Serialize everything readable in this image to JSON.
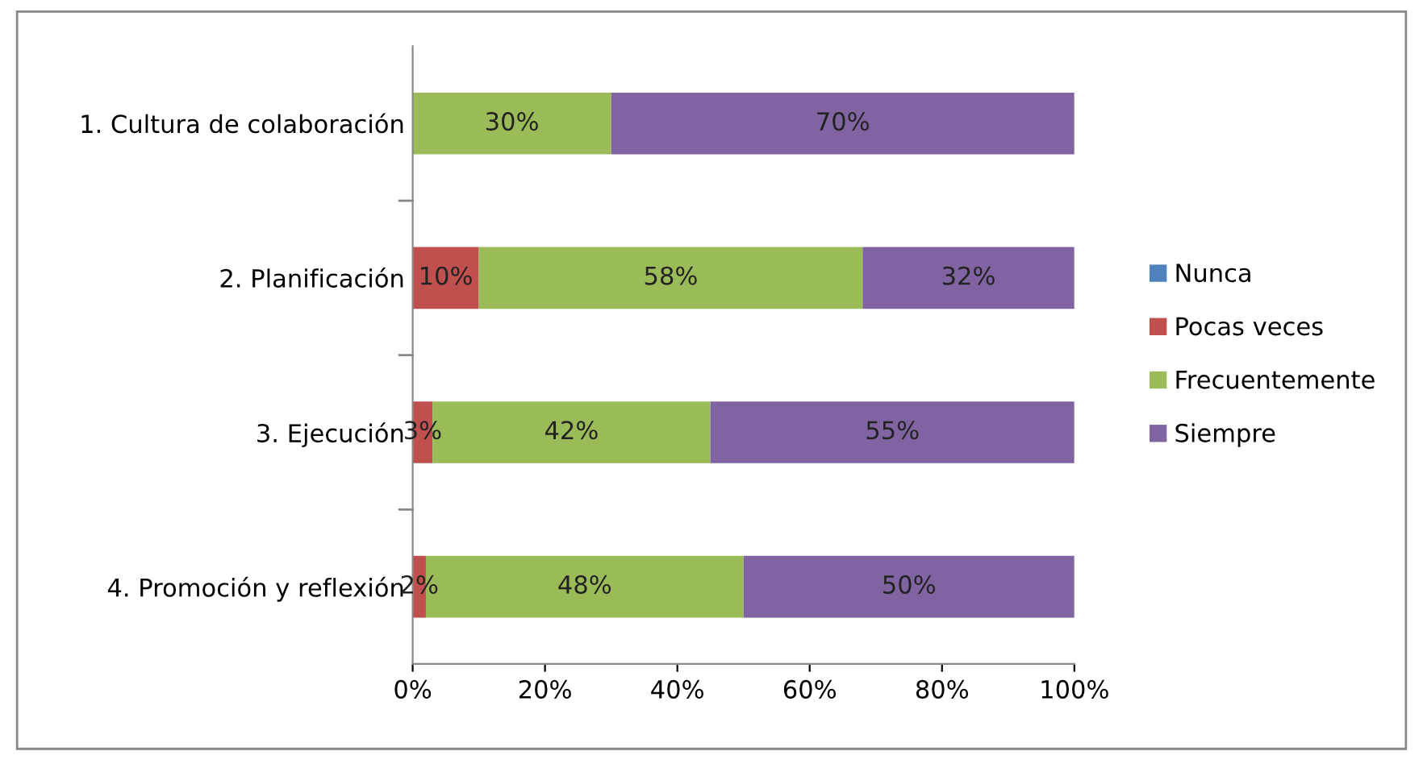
{
  "chart_data": {
    "type": "bar",
    "orientation": "horizontal",
    "stacked": true,
    "categories": [
      "1. Cultura de colaboración",
      "2. Planificación",
      "3. Ejecución",
      "4. Promoción y reflexión"
    ],
    "series": [
      {
        "name": "Nunca",
        "color": "#4f81bd",
        "values": [
          0,
          0,
          0,
          0
        ],
        "value_labels": [
          null,
          null,
          null,
          null
        ]
      },
      {
        "name": "Pocas veces",
        "color": "#c0504d",
        "values": [
          0,
          10,
          3,
          2
        ],
        "value_labels": [
          null,
          "10%",
          "3%",
          "2%"
        ]
      },
      {
        "name": "Frecuentemente",
        "color": "#9bbb59",
        "values": [
          30,
          58,
          42,
          48
        ],
        "value_labels": [
          "30%",
          "58%",
          "42%",
          "48%"
        ]
      },
      {
        "name": "Siempre",
        "color": "#8064a2",
        "values": [
          70,
          32,
          55,
          50
        ],
        "value_labels": [
          "70%",
          "32%",
          "55%",
          "50%"
        ]
      }
    ],
    "xlim": [
      0,
      100
    ],
    "xticks": [
      {
        "value": 0,
        "label": "0%"
      },
      {
        "value": 20,
        "label": "20%"
      },
      {
        "value": 40,
        "label": "40%"
      },
      {
        "value": 60,
        "label": "60%"
      },
      {
        "value": 80,
        "label": "80%"
      },
      {
        "value": 100,
        "label": "100%"
      }
    ],
    "grid": false,
    "legend": "right"
  }
}
